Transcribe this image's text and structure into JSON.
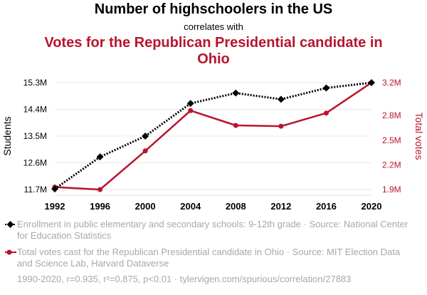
{
  "chart_data": {
    "type": "line",
    "title": "Number of highschoolers in the US",
    "subtitle": "correlates with",
    "title2": "Votes for the Republican Presidential candidate in Ohio",
    "x": [
      1992,
      1996,
      2000,
      2004,
      2008,
      2012,
      2016,
      2020
    ],
    "left_axis": {
      "label": "Students",
      "ticks": [
        "11.7M",
        "12.6M",
        "13.5M",
        "14.4M",
        "15.3M"
      ],
      "tick_values": [
        11.7,
        12.6,
        13.5,
        14.4,
        15.3
      ],
      "range": [
        11.7,
        15.3
      ],
      "color": "#000000"
    },
    "right_axis": {
      "label": "Total votes",
      "ticks": [
        "1.9M",
        "2.2M",
        "2.5M",
        "2.8M",
        "3.2M"
      ],
      "tick_values": [
        1.9,
        2.2,
        2.5,
        2.8,
        3.2
      ],
      "range": [
        1.9,
        3.2
      ],
      "color": "#b8142e"
    },
    "series": [
      {
        "values": [
          11.72,
          12.8,
          13.5,
          14.6,
          14.95,
          14.74,
          15.12,
          15.3
        ],
        "axis": "left",
        "color": "#000000",
        "style": "dotted",
        "marker": "diamond"
      },
      {
        "values": [
          1.93,
          1.9,
          2.37,
          2.86,
          2.68,
          2.67,
          2.83,
          3.2
        ],
        "axis": "right",
        "color": "#b8142e",
        "style": "solid",
        "marker": "circle"
      }
    ],
    "grid": true,
    "legend": [
      {
        "text": "Enrollment in public elementary and secondary schools: 9-12th grade · Source: National Center for Education Statistics",
        "color": "#000000",
        "marker": "diamond"
      },
      {
        "text": "Total votes cast for the Republican Presidential candidate in Ohio · Source: MIT Election Data and Science Lab, Harvard Dataverse",
        "color": "#b8142e",
        "marker": "circle"
      }
    ],
    "legend_position": "bottom-left",
    "footer": "1990-2020, r=0.935, r²=0.875, p<0.01 · tylervigen.com/spurious/correlation/27883"
  }
}
